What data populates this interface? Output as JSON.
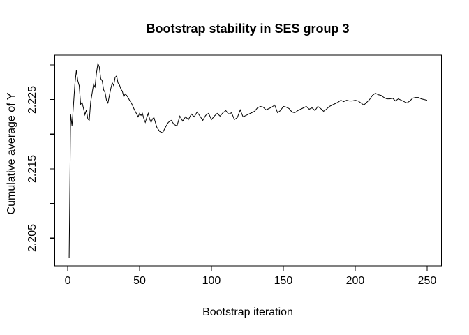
{
  "chart_data": {
    "type": "line",
    "title": "Bootstrap stability in SES group 3",
    "xlabel": "Bootstrap iteration",
    "ylabel": "Cumulative average of Y",
    "grid": false,
    "legend": null,
    "background": "#ffffff",
    "line_color": "#000000",
    "axis_color": "#000000",
    "xlim": [
      -9,
      260
    ],
    "ylim": [
      2.201,
      2.2314
    ],
    "x_ticks": [
      {
        "value": 0,
        "label": "0"
      },
      {
        "value": 50,
        "label": "50"
      },
      {
        "value": 100,
        "label": "100"
      },
      {
        "value": 150,
        "label": "150"
      },
      {
        "value": 200,
        "label": "200"
      },
      {
        "value": 250,
        "label": "250"
      }
    ],
    "y_ticks": [
      {
        "value": 2.205,
        "label": "2.205"
      },
      {
        "value": 2.21,
        "label": ""
      },
      {
        "value": 2.215,
        "label": "2.215"
      },
      {
        "value": 2.22,
        "label": ""
      },
      {
        "value": 2.225,
        "label": "2.225"
      },
      {
        "value": 2.23,
        "label": ""
      }
    ],
    "series": [
      {
        "name": "cumulative-average-of-Y",
        "x": [
          1,
          2,
          3,
          4,
          5,
          6,
          7,
          8,
          9,
          10,
          11,
          12,
          13,
          14,
          15,
          16,
          17,
          18,
          19,
          20,
          21,
          22,
          23,
          24,
          25,
          26,
          27,
          28,
          29,
          30,
          31,
          32,
          33,
          34,
          35,
          36,
          37,
          38,
          39,
          40,
          41,
          42,
          43,
          44,
          45,
          46,
          47,
          48,
          49,
          50,
          51,
          52,
          53,
          54,
          55,
          56,
          57,
          58,
          59,
          60,
          62,
          64,
          66,
          68,
          70,
          72,
          74,
          76,
          78,
          80,
          82,
          84,
          86,
          88,
          90,
          92,
          94,
          96,
          98,
          100,
          102,
          104,
          106,
          108,
          110,
          112,
          114,
          116,
          118,
          120,
          122,
          124,
          126,
          128,
          130,
          132,
          134,
          136,
          138,
          140,
          142,
          144,
          146,
          148,
          150,
          152,
          154,
          156,
          158,
          160,
          162,
          164,
          166,
          168,
          170,
          172,
          174,
          176,
          178,
          180,
          182,
          184,
          186,
          188,
          190,
          192,
          194,
          196,
          198,
          200,
          202,
          204,
          206,
          208,
          210,
          212,
          214,
          216,
          218,
          220,
          222,
          224,
          226,
          228,
          230,
          232,
          234,
          236,
          238,
          240,
          242,
          244,
          246,
          248,
          250
        ],
        "y": [
          2.2022,
          2.2229,
          2.2212,
          2.2242,
          2.2272,
          2.2292,
          2.2277,
          2.227,
          2.2243,
          2.2246,
          2.2237,
          2.2228,
          2.2235,
          2.2222,
          2.222,
          2.2247,
          2.2259,
          2.2272,
          2.2268,
          2.2288,
          2.2302,
          2.2297,
          2.228,
          2.2277,
          2.2264,
          2.226,
          2.2249,
          2.2245,
          2.2256,
          2.2266,
          2.2274,
          2.227,
          2.2282,
          2.2284,
          2.2274,
          2.2271,
          2.2265,
          2.2262,
          2.2254,
          2.2258,
          2.2256,
          2.2253,
          2.2249,
          2.2246,
          2.2242,
          2.2237,
          2.2233,
          2.2229,
          2.2225,
          2.223,
          2.2227,
          2.223,
          2.2222,
          2.2217,
          2.2224,
          2.223,
          2.2222,
          2.2217,
          2.2222,
          2.2224,
          2.221,
          2.2204,
          2.2202,
          2.221,
          2.2217,
          2.222,
          2.2214,
          2.2212,
          2.2226,
          2.2219,
          2.2225,
          2.2221,
          2.2229,
          2.2225,
          2.2232,
          2.2226,
          2.222,
          2.2227,
          2.223,
          2.2221,
          2.2226,
          2.223,
          2.2226,
          2.2231,
          2.2234,
          2.2229,
          2.2231,
          2.2221,
          2.2224,
          2.2235,
          2.2225,
          2.2227,
          2.2229,
          2.2231,
          2.2233,
          2.2238,
          2.224,
          2.2239,
          2.2235,
          2.2237,
          2.2239,
          2.2242,
          2.2231,
          2.2234,
          2.224,
          2.2239,
          2.2237,
          2.2232,
          2.2231,
          2.2234,
          2.2236,
          2.2238,
          2.224,
          2.2236,
          2.2238,
          2.2234,
          2.224,
          2.2237,
          2.2233,
          2.2236,
          2.224,
          2.2242,
          2.2244,
          2.2246,
          2.2249,
          2.2247,
          2.2249,
          2.2248,
          2.2248,
          2.2249,
          2.2248,
          2.2245,
          2.2242,
          2.2246,
          2.225,
          2.2256,
          2.2259,
          2.2257,
          2.2256,
          2.2253,
          2.2251,
          2.2251,
          2.2252,
          2.2248,
          2.2251,
          2.2249,
          2.2247,
          2.2245,
          2.2248,
          2.2252,
          2.2253,
          2.2253,
          2.2251,
          2.225,
          2.2249
        ]
      }
    ]
  }
}
